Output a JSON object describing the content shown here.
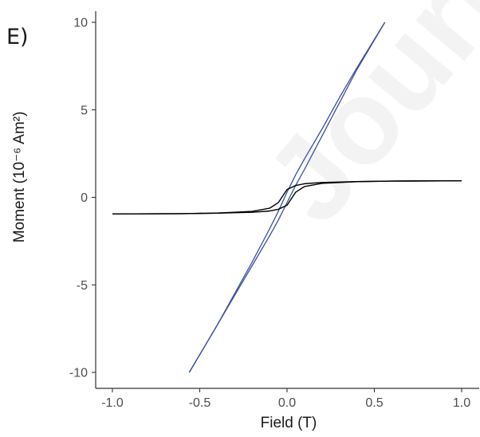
{
  "panel_label": "E)",
  "watermark_text": "Journal",
  "chart_data": {
    "type": "line",
    "title": "",
    "xlabel": "Field (T)",
    "ylabel": "Moment (10⁻⁶ Am²)",
    "xlim": [
      -1.0,
      1.0
    ],
    "ylim": [
      -10,
      10
    ],
    "xticks": [
      -1.0,
      -0.5,
      0.0,
      0.5,
      1.0
    ],
    "xtick_labels": [
      "-1.0",
      "-0.5",
      "0.0",
      "0.5",
      "1.0"
    ],
    "yticks": [
      -10,
      -5,
      0,
      5,
      10
    ],
    "ytick_labels": [
      "-10",
      "-5",
      "0",
      "5",
      "10"
    ],
    "grid": false,
    "legend": "none",
    "series": [
      {
        "color": "#3a4fa0",
        "branches": [
          {
            "x": [
              -0.56,
              -0.4,
              -0.3,
              -0.2,
              -0.1,
              -0.05,
              0.0,
              0.05,
              0.1,
              0.2,
              0.3,
              0.4,
              0.56
            ],
            "y": [
              -10.0,
              -7.3,
              -5.6,
              -3.9,
              -2.2,
              -1.3,
              -0.3,
              0.7,
              1.6,
              3.5,
              5.4,
              7.3,
              10.0
            ]
          },
          {
            "x": [
              -0.56,
              -0.4,
              -0.3,
              -0.2,
              -0.1,
              -0.05,
              0.0,
              0.05,
              0.1,
              0.2,
              0.3,
              0.4,
              0.56
            ],
            "y": [
              -10.0,
              -7.3,
              -5.5,
              -3.7,
              -1.8,
              -0.8,
              0.3,
              1.3,
              2.2,
              3.9,
              5.7,
              7.4,
              10.0
            ]
          }
        ]
      },
      {
        "color": "#000000",
        "branches": [
          {
            "x": [
              -1.0,
              -0.6,
              -0.4,
              -0.2,
              -0.1,
              -0.05,
              0.0,
              0.02,
              0.05,
              0.1,
              0.2,
              0.4,
              0.6,
              1.0
            ],
            "y": [
              -0.95,
              -0.93,
              -0.9,
              -0.85,
              -0.78,
              -0.68,
              -0.45,
              -0.15,
              0.3,
              0.62,
              0.8,
              0.9,
              0.93,
              0.95
            ]
          },
          {
            "x": [
              -1.0,
              -0.6,
              -0.4,
              -0.2,
              -0.1,
              -0.05,
              -0.02,
              0.0,
              0.05,
              0.1,
              0.2,
              0.4,
              0.6,
              1.0
            ],
            "y": [
              -0.95,
              -0.93,
              -0.9,
              -0.8,
              -0.62,
              -0.3,
              0.15,
              0.45,
              0.68,
              0.78,
              0.85,
              0.9,
              0.93,
              0.95
            ]
          }
        ]
      }
    ]
  }
}
